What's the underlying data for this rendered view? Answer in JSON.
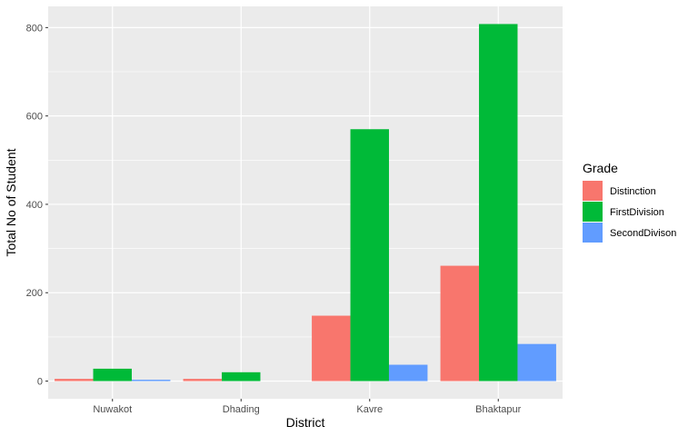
{
  "chart_data": {
    "type": "bar",
    "categories": [
      "Nuwakot",
      "Dhading",
      "Kavre",
      "Bhaktapur"
    ],
    "series": [
      {
        "name": "Distinction",
        "color": "#F8766D",
        "values": [
          5,
          5,
          148,
          261
        ]
      },
      {
        "name": "FirstDivision",
        "color": "#00BA38",
        "values": [
          28,
          20,
          570,
          808
        ]
      },
      {
        "name": "SecondDivison",
        "color": "#619CFF",
        "values": [
          3,
          0,
          37,
          84
        ]
      }
    ],
    "xlabel": "District",
    "ylabel": "Total No of Student",
    "ylim": [
      -40,
      848
    ],
    "yticks": [
      0,
      200,
      400,
      600,
      800
    ],
    "grid": true,
    "legend": {
      "title": "Grade",
      "position": "right"
    },
    "panel_color": "#EBEBEB"
  }
}
